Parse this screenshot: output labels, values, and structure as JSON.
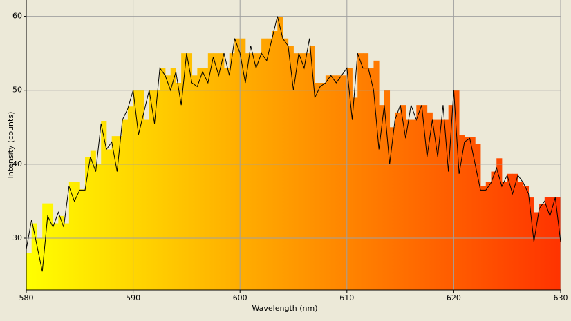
{
  "chart_data": {
    "type": "spectrum",
    "x_label": "Wavelength (nm)",
    "y_label": "Intensity (counts)",
    "xlim": [
      580,
      630
    ],
    "ylim": [
      23,
      62.2
    ],
    "xticks": [
      580,
      590,
      600,
      610,
      620,
      630
    ],
    "yticks": [
      30,
      40,
      50,
      60
    ],
    "grid": true,
    "color_start": "#ffff00",
    "color_end": "#ff3300",
    "line_color": "#000000",
    "x": [
      580,
      580.5,
      581,
      581.5,
      582,
      582.5,
      583,
      583.5,
      584,
      584.5,
      585,
      585.5,
      586,
      586.5,
      587,
      587.5,
      588,
      588.5,
      589,
      589.5,
      590,
      590.5,
      591,
      591.5,
      592,
      592.5,
      593,
      593.5,
      594,
      594.5,
      595,
      595.5,
      596,
      596.5,
      597,
      597.5,
      598,
      598.5,
      599,
      599.5,
      600,
      600.5,
      601,
      601.5,
      602,
      602.5,
      603,
      603.5,
      604,
      604.5,
      605,
      605.5,
      606,
      606.5,
      607,
      607.5,
      608,
      608.5,
      609,
      609.5,
      610,
      610.5,
      611,
      611.5,
      612,
      612.5,
      613,
      613.5,
      614,
      614.5,
      615,
      615.5,
      616,
      616.5,
      617,
      617.5,
      618,
      618.5,
      619,
      619.5,
      620,
      620.5,
      621,
      621.5,
      622,
      622.5,
      623,
      623.5,
      624,
      624.5,
      625,
      625.5,
      626,
      626.5,
      627,
      627.5,
      628,
      628.5,
      629,
      629.5,
      630
    ],
    "bar_values": [
      28,
      32,
      30,
      34.7,
      34.7,
      32,
      33,
      32,
      37.6,
      37.6,
      36.6,
      41,
      41.8,
      40,
      45.8,
      42,
      43.8,
      43.8,
      46,
      47.8,
      50,
      50,
      46,
      50,
      50,
      53,
      52,
      53,
      51,
      55,
      55,
      52,
      53,
      53,
      55,
      55,
      55,
      53,
      55,
      57,
      57,
      55,
      55,
      55,
      57,
      57,
      58,
      60,
      57,
      56,
      55,
      55,
      55,
      56,
      51,
      51,
      52,
      52,
      52,
      52,
      53,
      49,
      55,
      55,
      53,
      54,
      48,
      50,
      45,
      47,
      48,
      46,
      46,
      48,
      48,
      47,
      46,
      46,
      46,
      48,
      50,
      44,
      43.7,
      43.7,
      42.7,
      37,
      37.6,
      39,
      40.8,
      37.6,
      38.7,
      38.7,
      37.6,
      37,
      35.5,
      33.5,
      34.6,
      35.6,
      35.6,
      35.6
    ],
    "line_values": [
      28.5,
      32.5,
      29,
      25.5,
      33,
      31.5,
      33.5,
      31.5,
      37,
      35,
      36.5,
      36.5,
      41,
      39,
      45.5,
      42,
      43,
      39,
      46,
      47.5,
      50,
      44,
      47,
      50,
      45.5,
      53,
      52,
      50,
      52.5,
      48,
      55,
      51,
      50.5,
      52.5,
      51,
      54.5,
      52,
      55,
      52,
      57,
      55,
      51,
      56,
      53,
      55,
      54,
      57,
      60,
      57,
      56,
      50,
      55,
      53,
      57,
      49,
      50.5,
      51,
      52,
      51,
      52,
      53,
      46,
      55,
      53,
      53,
      50,
      42,
      48,
      40,
      46,
      48,
      43.5,
      48,
      46,
      48,
      41,
      46,
      41,
      48,
      39,
      50,
      38.7,
      43,
      43.5,
      40,
      36.5,
      36.5,
      37.5,
      39.5,
      37,
      38.5,
      36,
      38.5,
      37.5,
      36,
      29.5,
      34,
      35,
      33,
      35.5,
      29.5
    ]
  }
}
